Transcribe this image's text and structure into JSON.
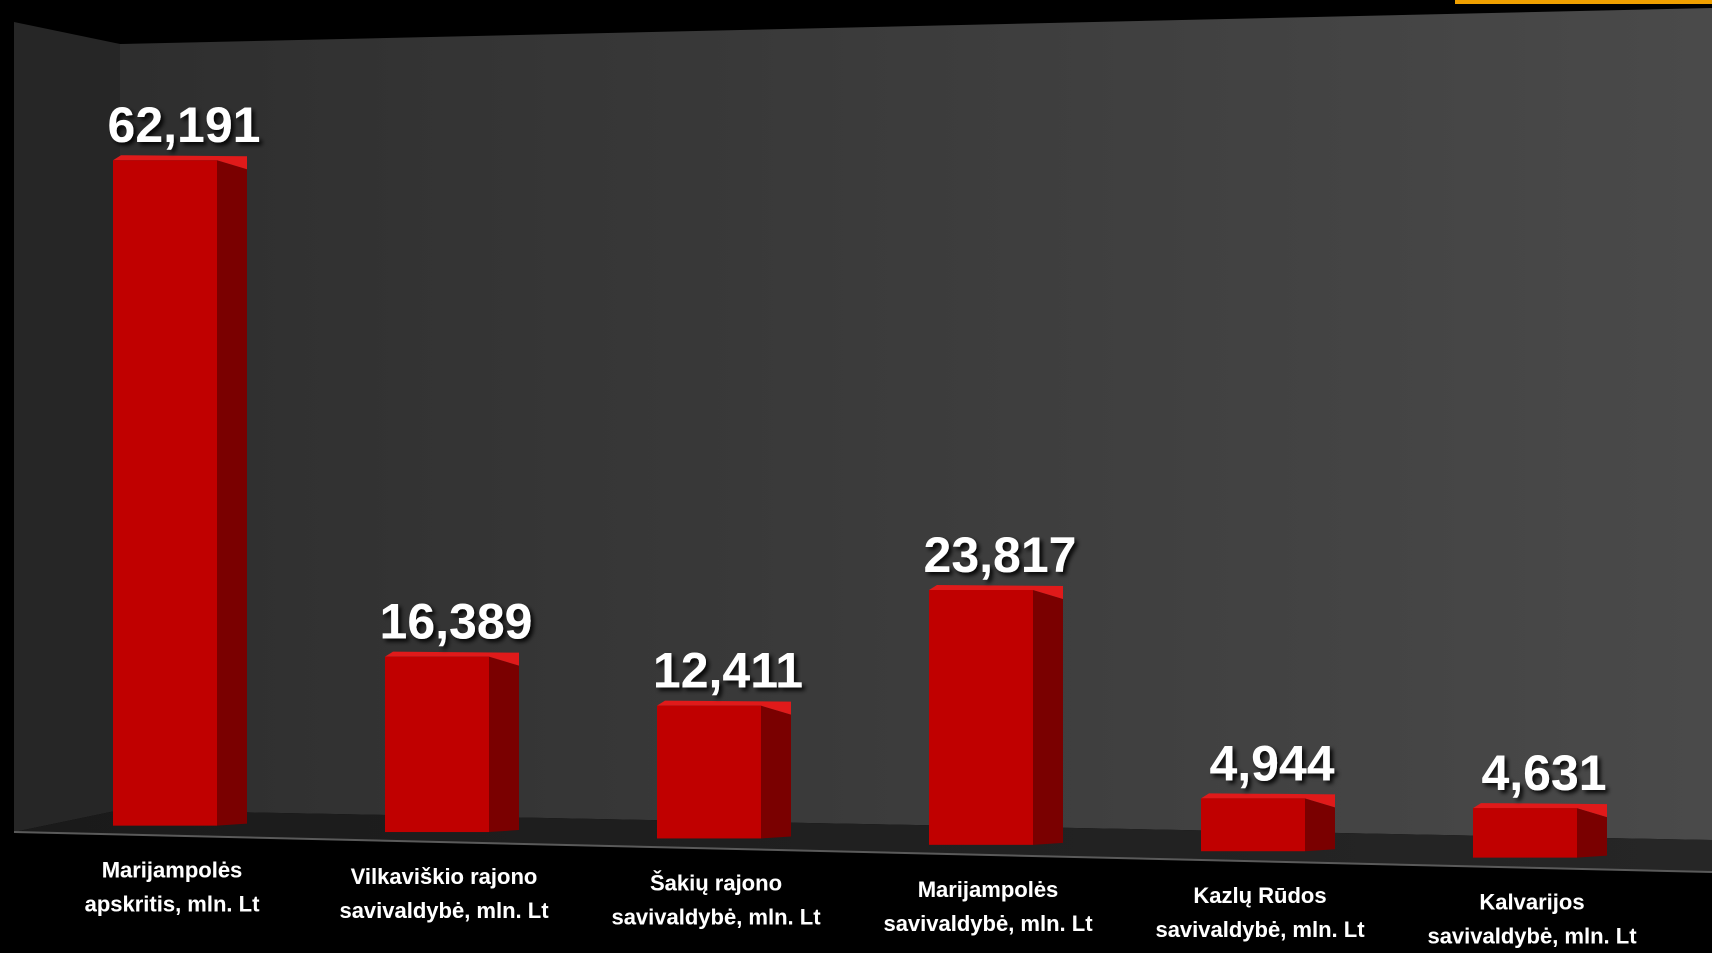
{
  "chart_data": {
    "type": "bar",
    "categories": [
      [
        "Marijampolės",
        "apskritis, mln. Lt"
      ],
      [
        "Vilkaviškio rajono",
        "savivaldybė, mln. Lt"
      ],
      [
        "Šakių rajono",
        "savivaldybė, mln. Lt"
      ],
      [
        "Marijampolės",
        "savivaldybė, mln. Lt"
      ],
      [
        "Kazlų Rūdos",
        "savivaldybė, mln. Lt"
      ],
      [
        "Kalvarijos",
        "savivaldybė, mln. Lt"
      ]
    ],
    "values": [
      62.191,
      16.389,
      12.411,
      23.817,
      4.944,
      4.631
    ],
    "value_labels": [
      "62,191",
      "16,389",
      "12,411",
      "23,817",
      "4,944",
      "4,631"
    ],
    "title": "",
    "xlabel": "",
    "ylabel": "",
    "ylim": [
      0,
      70
    ],
    "grid": false,
    "legend": "none",
    "colors": {
      "page_background": "#000000",
      "wall": "#3c3c3c",
      "side_wall": "#262626",
      "floor": "#1c1c1c",
      "bar_front": "#c00000",
      "bar_side": "#7a0000",
      "bar_top": "#e01a1a",
      "label_text": "#ffffff",
      "accent_corner": "#f0a000"
    }
  }
}
